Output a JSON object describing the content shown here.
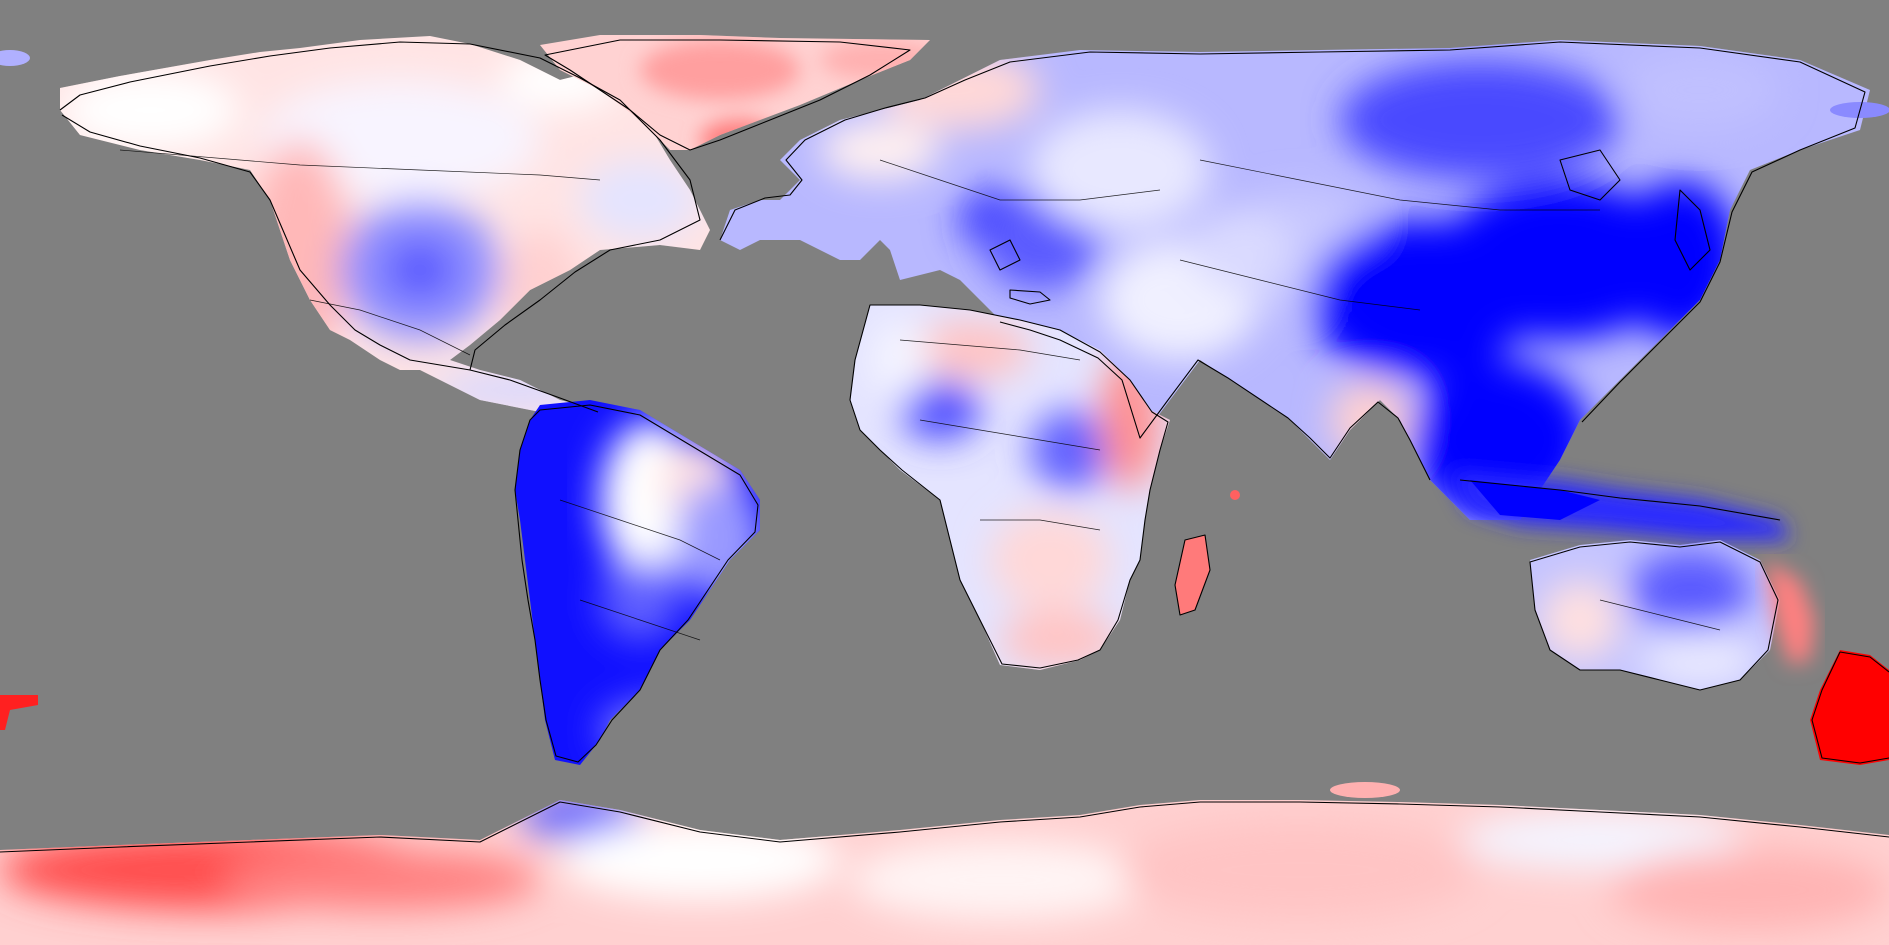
{
  "map": {
    "projection": "equirectangular",
    "background_color": "#808080",
    "colormap": {
      "type": "diverging",
      "negative_color": "#0000ff",
      "neutral_color": "#ffffff",
      "positive_color": "#ff0000"
    },
    "layers": [
      "anomaly-field",
      "coastlines",
      "country-borders"
    ]
  }
}
